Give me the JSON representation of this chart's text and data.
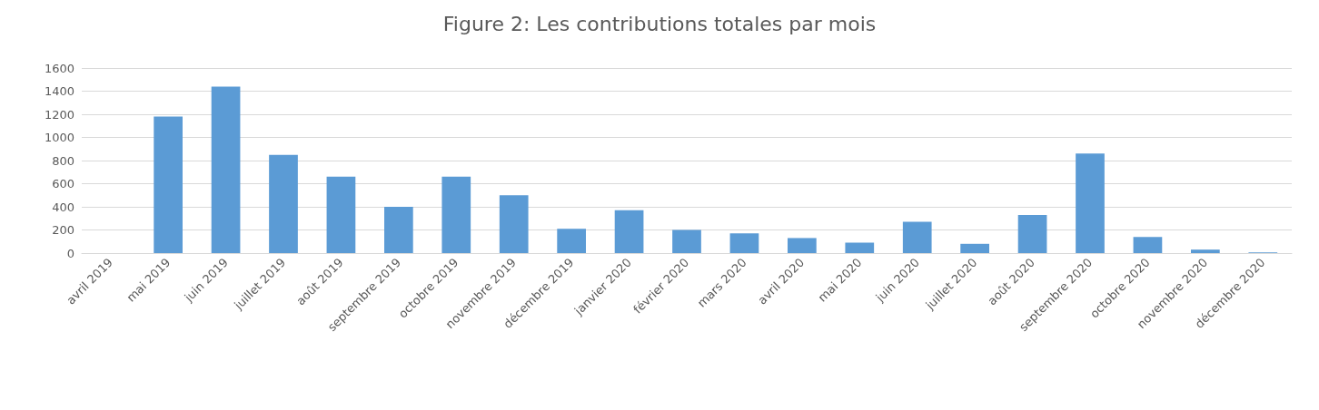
{
  "chart_data": {
    "type": "bar",
    "title": "Figure 2: Les contributions totales par mois",
    "categories": [
      "avril 2019",
      "mai 2019",
      "juin 2019",
      "juillet 2019",
      "août 2019",
      "septembre 2019",
      "octobre 2019",
      "novembre 2019",
      "décembre 2019",
      "janvier 2020",
      "février 2020",
      "mars 2020",
      "avril 2020",
      "mai 2020",
      "juin 2020",
      "juillet 2020",
      "août 2020",
      "septembre 2020",
      "octobre 2020",
      "novembre 2020",
      "décembre 2020"
    ],
    "values": [
      0,
      1180,
      1440,
      850,
      660,
      400,
      660,
      500,
      210,
      370,
      200,
      170,
      130,
      90,
      270,
      80,
      330,
      860,
      140,
      30,
      5
    ],
    "color": "#5b9bd5",
    "ylim": [
      0,
      1600
    ],
    "yticks": [
      0,
      200,
      400,
      600,
      800,
      1000,
      1200,
      1400,
      1600
    ],
    "grid": "y"
  }
}
